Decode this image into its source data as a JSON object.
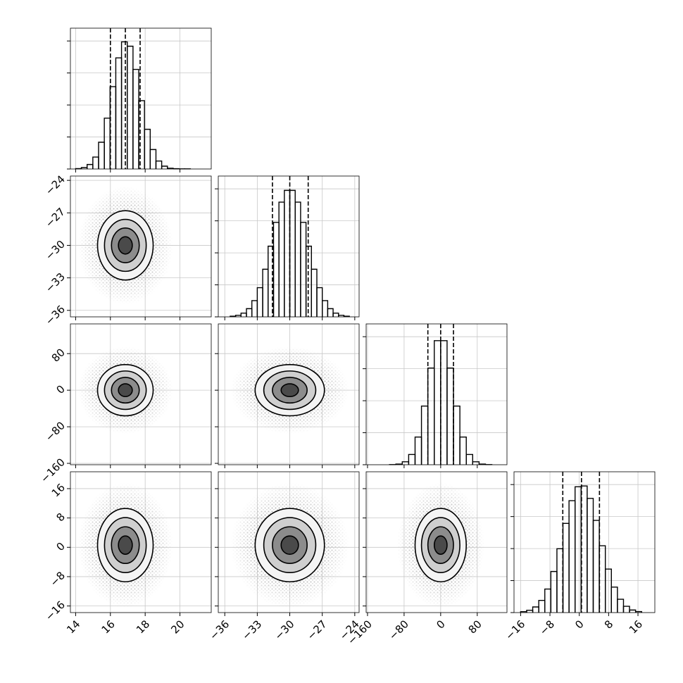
{
  "chart_data": {
    "type": "corner",
    "grid": true,
    "variables": [
      {
        "lim": [
          13.7,
          21.8
        ],
        "ticks": [
          14,
          16,
          18,
          20
        ],
        "sd": 0.8,
        "quantiles": [
          16.0,
          16.86,
          17.71
        ],
        "hist": {
          "bins": [
            14,
            14.33,
            14.66,
            14.99,
            15.32,
            15.65,
            15.98,
            16.31,
            16.64,
            16.97,
            17.3,
            17.63,
            17.96,
            18.29,
            18.62,
            18.95,
            19.28,
            19.61,
            19.94,
            20.27,
            20.6
          ],
          "counts": [
            3,
            11,
            35,
            93,
            209,
            397,
            643,
            868,
            993,
            959,
            778,
            534,
            310,
            152,
            62,
            22,
            6,
            2,
            1,
            1
          ],
          "ylim": [
            0,
            1100
          ],
          "yticks": [
            0,
            250,
            500,
            750,
            1000
          ]
        }
      },
      {
        "lim": [
          -36.6,
          -23.6
        ],
        "ticks": [
          {
            "value": -36,
            "label": "−36"
          },
          {
            "value": -33,
            "label": "−33"
          },
          {
            "value": -30,
            "label": "−30"
          },
          {
            "value": -27,
            "label": "−27"
          },
          {
            "value": -24,
            "label": "−24"
          }
        ],
        "sd": 1.6,
        "quantiles": [
          -31.6,
          -30.0,
          -28.3
        ],
        "hist": {
          "bins": [
            -35.5,
            -35,
            -34.5,
            -34,
            -33.5,
            -33,
            -32.5,
            -32,
            -31.5,
            -31,
            -30.5,
            -30,
            -29.5,
            -29,
            -28.5,
            -28,
            -27.5,
            -27,
            -26.5,
            -26,
            -25.5,
            -25,
            -24.5
          ],
          "counts": [
            5,
            12,
            29,
            64,
            127,
            228,
            372,
            552,
            738,
            896,
            988,
            988,
            896,
            738,
            552,
            372,
            228,
            127,
            64,
            29,
            12,
            5
          ],
          "ylim": [
            0,
            1100
          ],
          "yticks": [
            0,
            250,
            500,
            750,
            1000
          ]
        }
      },
      {
        "lim": [
          -163,
          145
        ],
        "ticks": [
          {
            "value": -160,
            "label": "−160"
          },
          {
            "value": -80,
            "label": "−80"
          },
          0,
          80
        ],
        "sd": 28,
        "quantiles": [
          -28,
          0,
          28
        ],
        "hist": {
          "bins": [
            -112,
            -98,
            -84,
            -70,
            -56,
            -42,
            -28,
            -14,
            0,
            14,
            28,
            42,
            56,
            70,
            84,
            98,
            112
          ],
          "counts": [
            1,
            5,
            23,
            80,
            216,
            458,
            755,
            969,
            969,
            755,
            458,
            216,
            80,
            23,
            5,
            1
          ],
          "ylim": [
            0,
            1100
          ],
          "yticks": [
            0,
            250,
            500,
            750,
            1000
          ]
        }
      },
      {
        "lim": [
          -17.8,
          20.6
        ],
        "ticks": [
          {
            "value": -16,
            "label": "−16"
          },
          {
            "value": -8,
            "label": "−8"
          },
          0,
          8,
          16
        ],
        "sd": 5,
        "quantiles": [
          -4.5,
          0.6,
          5.5
        ],
        "hist": {
          "bins": [
            -16,
            -14.35,
            -12.7,
            -11.05,
            -9.4,
            -7.75,
            -6.1,
            -4.45,
            -2.8,
            -1.15,
            0.5,
            2.15,
            3.8,
            5.45,
            7.1,
            8.75,
            10.4,
            12.05,
            13.7,
            15.35,
            17
          ],
          "counts": [
            7,
            18,
            44,
            95,
            184,
            321,
            499,
            697,
            874,
            983,
            989,
            892,
            720,
            522,
            340,
            199,
            104,
            49,
            20,
            8
          ],
          "ylim": [
            0,
            1100
          ],
          "yticks": [
            0,
            250,
            500,
            750,
            1000
          ]
        }
      }
    ],
    "pairs": [
      [
        {
          "levels": [
            2,
            1.5,
            1,
            0.5
          ],
          "extent": 3.4
        }
      ],
      [
        {
          "levels": [
            2,
            1.5,
            1,
            0.5
          ],
          "extent": 3.4
        },
        {
          "levels": [
            2,
            1.5,
            1,
            0.5
          ],
          "extent": 3.4
        }
      ],
      [
        {
          "levels": [
            2,
            1.5,
            1,
            0.5
          ],
          "extent": 3.4
        },
        {
          "levels": [
            2,
            1.5,
            1,
            0.5
          ],
          "extent": 3.4
        },
        {
          "levels": [
            2,
            1.5,
            1,
            0.5
          ],
          "extent": 3.4
        }
      ]
    ]
  }
}
